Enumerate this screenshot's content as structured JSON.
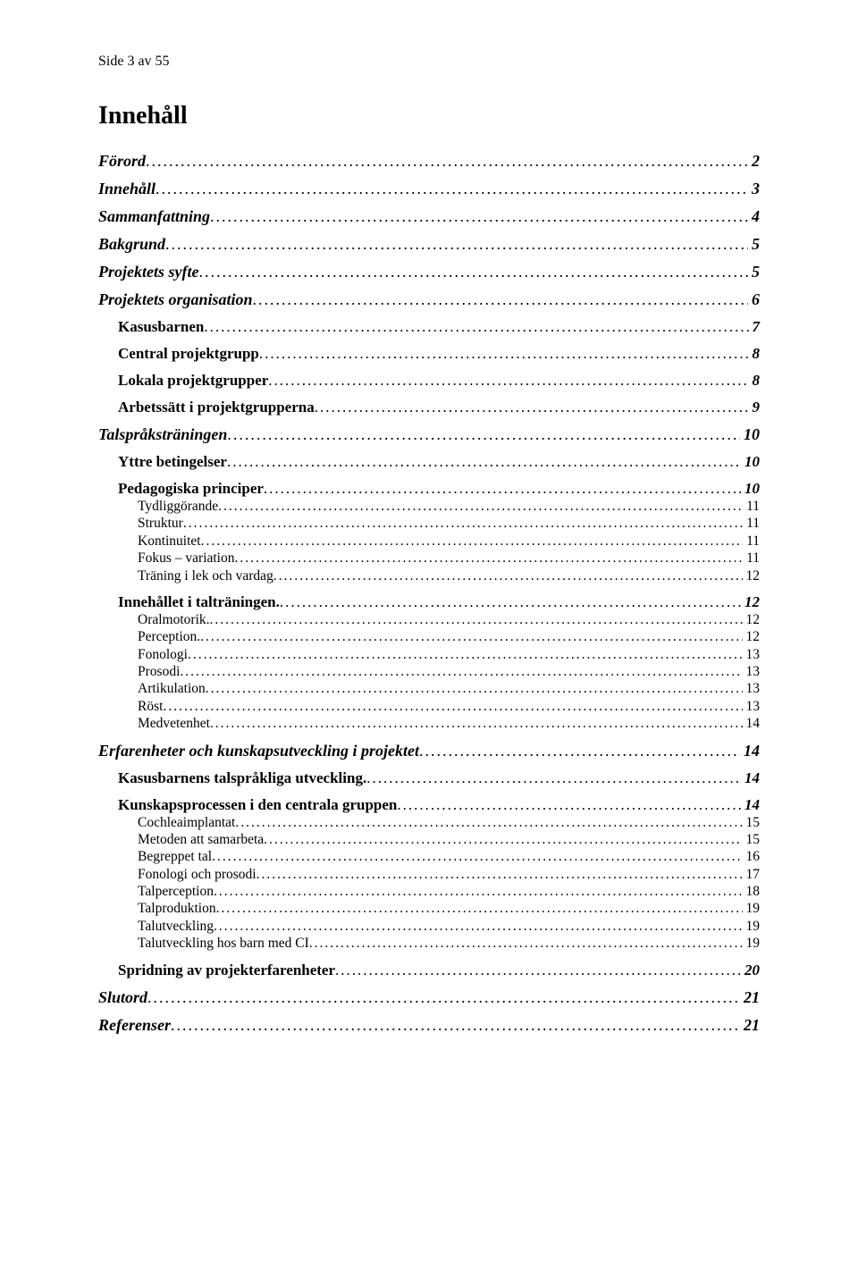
{
  "header": "Side 3 av 55",
  "title": "Innehåll",
  "toc": [
    {
      "label": "Förord",
      "page": "2",
      "level": 0,
      "style": "bi",
      "spaceBefore": false
    },
    {
      "label": "Innehåll",
      "page": "3",
      "level": 0,
      "style": "bi",
      "spaceBefore": true
    },
    {
      "label": "Sammanfattning",
      "page": "4",
      "level": 0,
      "style": "bi",
      "spaceBefore": true
    },
    {
      "label": "Bakgrund",
      "page": "5",
      "level": 0,
      "style": "bi",
      "spaceBefore": true
    },
    {
      "label": "Projektets syfte",
      "page": "5",
      "level": 0,
      "style": "bi",
      "spaceBefore": true
    },
    {
      "label": "Projektets organisation",
      "page": "6",
      "level": 0,
      "style": "bi",
      "spaceBefore": true
    },
    {
      "label": "Kasusbarnen",
      "page": "7",
      "level": 1,
      "style": "b",
      "spaceBefore": true
    },
    {
      "label": "Central projektgrupp",
      "page": "8",
      "level": 1,
      "style": "b",
      "spaceBefore": true
    },
    {
      "label": "Lokala projektgrupper",
      "page": "8",
      "level": 1,
      "style": "b",
      "spaceBefore": true
    },
    {
      "label": "Arbetssätt i projektgrupperna",
      "page": "9",
      "level": 1,
      "style": "b",
      "spaceBefore": true
    },
    {
      "label": "Talspråksträningen",
      "page": "10",
      "level": 0,
      "style": "bi",
      "spaceBefore": true
    },
    {
      "label": "Yttre betingelser",
      "page": "10",
      "level": 1,
      "style": "b",
      "spaceBefore": true
    },
    {
      "label": "Pedagogiska principer",
      "page": "10",
      "level": 1,
      "style": "b",
      "spaceBefore": true
    },
    {
      "label": "Tydliggörande",
      "page": "11",
      "level": 2,
      "style": "n",
      "spaceBefore": false
    },
    {
      "label": "Struktur",
      "page": "11",
      "level": 2,
      "style": "n",
      "spaceBefore": false
    },
    {
      "label": "Kontinuitet",
      "page": "11",
      "level": 2,
      "style": "n",
      "spaceBefore": false
    },
    {
      "label": "Fokus – variation",
      "page": "11",
      "level": 2,
      "style": "n",
      "spaceBefore": false
    },
    {
      "label": "Träning i lek och vardag",
      "page": "12",
      "level": 2,
      "style": "n",
      "spaceBefore": false
    },
    {
      "label": "Innehållet i talträningen.",
      "page": "12",
      "level": 1,
      "style": "b",
      "spaceBefore": true
    },
    {
      "label": "Oralmotorik.",
      "page": "12",
      "level": 2,
      "style": "n",
      "spaceBefore": false
    },
    {
      "label": "Perception.",
      "page": "12",
      "level": 2,
      "style": "n",
      "spaceBefore": false
    },
    {
      "label": "Fonologi",
      "page": "13",
      "level": 2,
      "style": "n",
      "spaceBefore": false
    },
    {
      "label": "Prosodi",
      "page": "13",
      "level": 2,
      "style": "n",
      "spaceBefore": false
    },
    {
      "label": "Artikulation",
      "page": "13",
      "level": 2,
      "style": "n",
      "spaceBefore": false
    },
    {
      "label": "Röst",
      "page": "13",
      "level": 2,
      "style": "n",
      "spaceBefore": false
    },
    {
      "label": "Medvetenhet",
      "page": "14",
      "level": 2,
      "style": "n",
      "spaceBefore": false
    },
    {
      "label": "Erfarenheter och kunskapsutveckling i projektet",
      "page": "14",
      "level": 0,
      "style": "bi",
      "spaceBefore": true
    },
    {
      "label": "Kasusbarnens talspråkliga utveckling.",
      "page": "14",
      "level": 1,
      "style": "b",
      "spaceBefore": true
    },
    {
      "label": "Kunskapsprocessen i den centrala gruppen",
      "page": "14",
      "level": 1,
      "style": "b",
      "spaceBefore": true
    },
    {
      "label": "Cochleaimplantat",
      "page": "15",
      "level": 2,
      "style": "n",
      "spaceBefore": false
    },
    {
      "label": "Metoden att samarbeta",
      "page": "15",
      "level": 2,
      "style": "n",
      "spaceBefore": false
    },
    {
      "label": "Begreppet tal",
      "page": "16",
      "level": 2,
      "style": "n",
      "spaceBefore": false
    },
    {
      "label": "Fonologi och prosodi",
      "page": "17",
      "level": 2,
      "style": "n",
      "spaceBefore": false
    },
    {
      "label": "Talperception",
      "page": "18",
      "level": 2,
      "style": "n",
      "spaceBefore": false
    },
    {
      "label": "Talproduktion",
      "page": "19",
      "level": 2,
      "style": "n",
      "spaceBefore": false
    },
    {
      "label": "Talutveckling",
      "page": "19",
      "level": 2,
      "style": "n",
      "spaceBefore": false
    },
    {
      "label": "Talutveckling hos barn med CI",
      "page": "19",
      "level": 2,
      "style": "n",
      "spaceBefore": false
    },
    {
      "label": "Spridning av projekterfarenheter",
      "page": "20",
      "level": 1,
      "style": "b",
      "spaceBefore": true
    },
    {
      "label": "Slutord",
      "page": "21",
      "level": 0,
      "style": "bi",
      "spaceBefore": true
    },
    {
      "label": "Referenser",
      "page": "21",
      "level": 0,
      "style": "bi",
      "spaceBefore": true
    }
  ]
}
